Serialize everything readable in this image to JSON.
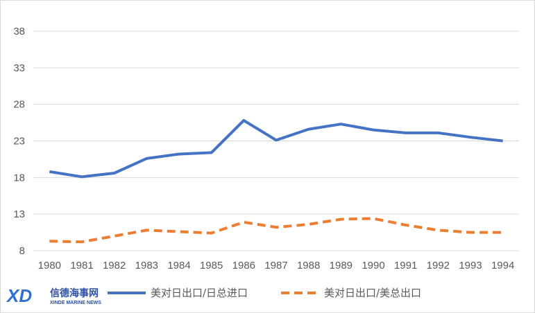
{
  "chart_data": {
    "type": "line",
    "title": "",
    "xlabel": "",
    "ylabel": "",
    "categories": [
      "1980",
      "1981",
      "1982",
      "1983",
      "1984",
      "1985",
      "1986",
      "1987",
      "1988",
      "1989",
      "1990",
      "1991",
      "1992",
      "1993",
      "1994"
    ],
    "ylim": [
      8,
      38
    ],
    "yticks": [
      8,
      13,
      18,
      23,
      28,
      33,
      38
    ],
    "grid": true,
    "legend_position": "bottom",
    "series": [
      {
        "name": "美对日出口/日总进口",
        "color": "#4472C4",
        "style": "solid",
        "values": [
          18.8,
          18.1,
          18.6,
          20.6,
          21.2,
          21.4,
          25.8,
          23.1,
          24.6,
          25.3,
          24.5,
          24.1,
          24.1,
          23.5,
          23.0
        ]
      },
      {
        "name": "美对日出口/美总出口",
        "color": "#ED7D31",
        "style": "dashed",
        "values": [
          9.3,
          9.2,
          10.0,
          10.8,
          10.6,
          10.4,
          11.9,
          11.2,
          11.6,
          12.3,
          12.4,
          11.5,
          10.8,
          10.5,
          10.5
        ]
      }
    ]
  },
  "watermark": {
    "logo_text": "XD",
    "name_cn": "信德海事网",
    "name_en": "XINDE MARINE NEWS"
  }
}
